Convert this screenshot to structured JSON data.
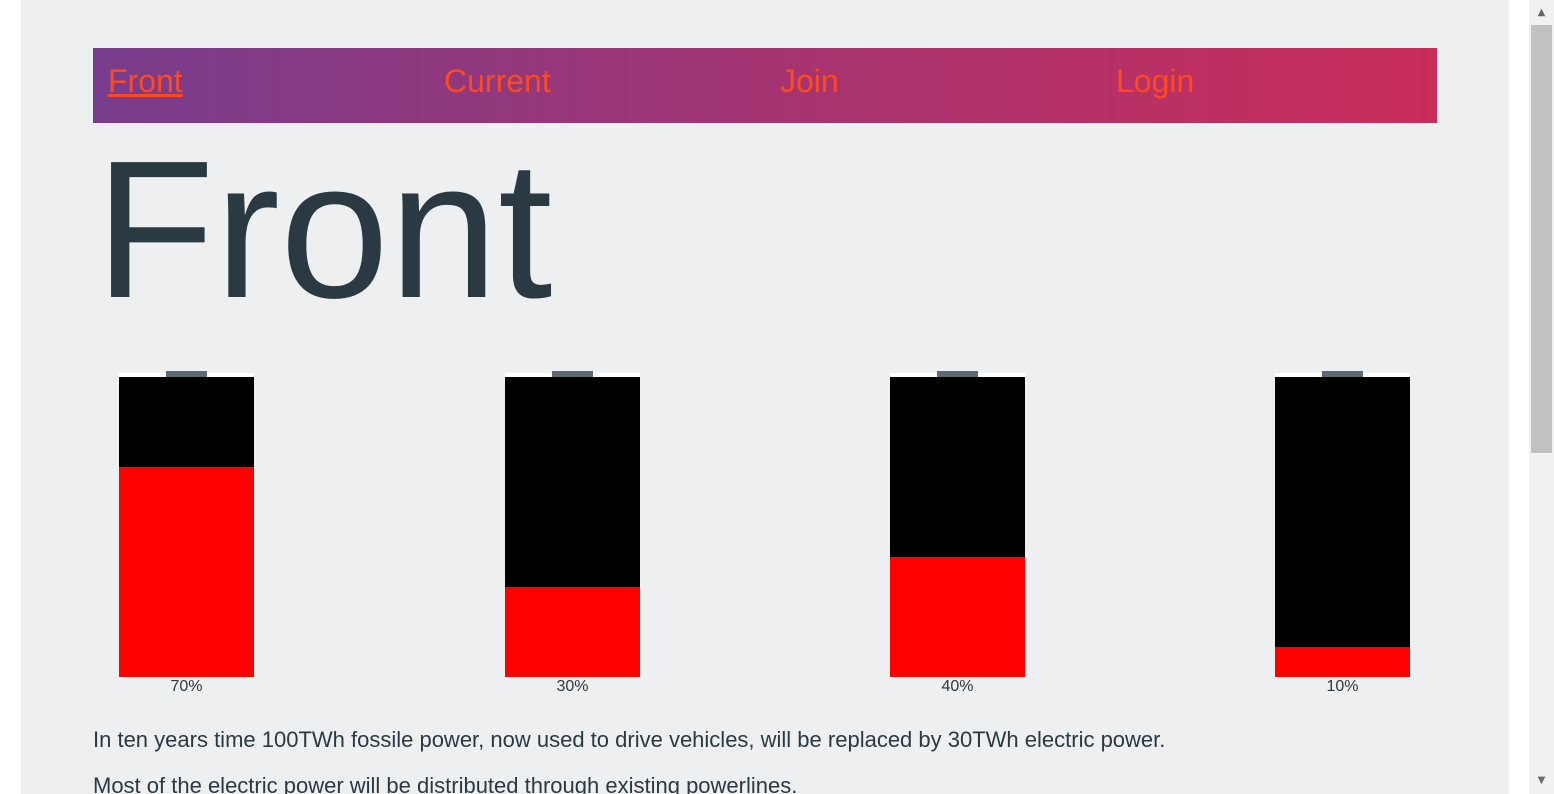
{
  "nav": {
    "items": [
      {
        "label": "Front",
        "active": true
      },
      {
        "label": "Current",
        "active": false
      },
      {
        "label": "Join",
        "active": false
      },
      {
        "label": "Login",
        "active": false
      }
    ]
  },
  "page_title": "Front",
  "batteries": [
    {
      "label": "70%",
      "level": 0.7
    },
    {
      "label": "30%",
      "level": 0.3
    },
    {
      "label": "40%",
      "level": 0.4
    },
    {
      "label": "10%",
      "level": 0.1
    }
  ],
  "paragraphs": [
    "In ten years time 100TWh fossile power, now used to drive vehicles, will be replaced by 30TWh electric power.",
    "Most of the electric power will be distributed through existing powerlines."
  ],
  "colors": {
    "nav_gradient_start": "#773d8c",
    "nav_gradient_end": "#c92d5a",
    "nav_link": "#ff4a1f",
    "battery_fill": "#ff0000",
    "battery_empty": "#000000",
    "text": "#2a3942",
    "page_background": "#eeeff1"
  },
  "scrollbar": {
    "up_icon": "triangle-up",
    "down_icon": "triangle-down"
  }
}
